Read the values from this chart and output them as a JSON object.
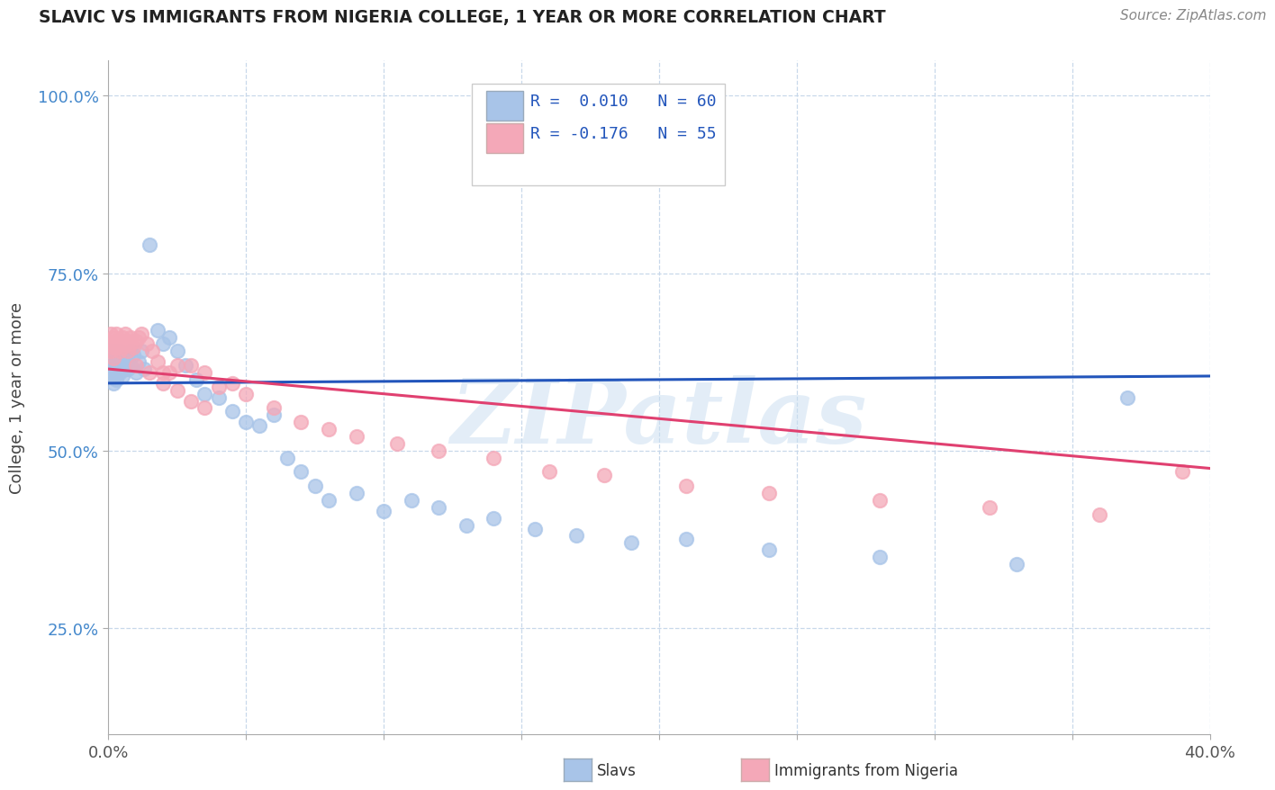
{
  "title": "SLAVIC VS IMMIGRANTS FROM NIGERIA COLLEGE, 1 YEAR OR MORE CORRELATION CHART",
  "source_text": "Source: ZipAtlas.com",
  "ylabel": "College, 1 year or more",
  "xlim": [
    0.0,
    0.4
  ],
  "ylim": [
    0.1,
    1.05
  ],
  "slavs_color": "#a8c4e8",
  "nigeria_color": "#f4a8b8",
  "trendline_slavs_color": "#2255bb",
  "trendline_nigeria_color": "#e04070",
  "background_color": "#ffffff",
  "grid_color": "#c8d8ea",
  "watermark": "ZIPatlas",
  "watermark_color": "#c8ddf0",
  "slavs_x": [
    0.001,
    0.001,
    0.001,
    0.001,
    0.002,
    0.002,
    0.002,
    0.002,
    0.003,
    0.003,
    0.003,
    0.003,
    0.004,
    0.004,
    0.004,
    0.005,
    0.005,
    0.005,
    0.006,
    0.006,
    0.007,
    0.007,
    0.008,
    0.008,
    0.009,
    0.01,
    0.011,
    0.012,
    0.013,
    0.015,
    0.018,
    0.02,
    0.022,
    0.025,
    0.028,
    0.032,
    0.035,
    0.04,
    0.045,
    0.05,
    0.055,
    0.06,
    0.065,
    0.07,
    0.075,
    0.08,
    0.09,
    0.1,
    0.11,
    0.12,
    0.13,
    0.14,
    0.155,
    0.17,
    0.19,
    0.21,
    0.24,
    0.28,
    0.33,
    0.37
  ],
  "slavs_y": [
    0.605,
    0.615,
    0.625,
    0.64,
    0.595,
    0.61,
    0.62,
    0.635,
    0.6,
    0.615,
    0.625,
    0.64,
    0.61,
    0.625,
    0.64,
    0.605,
    0.62,
    0.635,
    0.615,
    0.63,
    0.625,
    0.615,
    0.64,
    0.62,
    0.635,
    0.61,
    0.625,
    0.64,
    0.615,
    0.79,
    0.67,
    0.65,
    0.66,
    0.64,
    0.62,
    0.6,
    0.58,
    0.575,
    0.555,
    0.54,
    0.535,
    0.55,
    0.49,
    0.47,
    0.45,
    0.43,
    0.44,
    0.415,
    0.43,
    0.42,
    0.395,
    0.405,
    0.39,
    0.38,
    0.37,
    0.375,
    0.36,
    0.35,
    0.34,
    0.575
  ],
  "nigeria_x": [
    0.001,
    0.001,
    0.001,
    0.002,
    0.002,
    0.002,
    0.003,
    0.003,
    0.003,
    0.004,
    0.004,
    0.005,
    0.005,
    0.006,
    0.006,
    0.007,
    0.007,
    0.008,
    0.008,
    0.009,
    0.01,
    0.011,
    0.012,
    0.014,
    0.016,
    0.018,
    0.02,
    0.022,
    0.025,
    0.03,
    0.035,
    0.04,
    0.045,
    0.05,
    0.06,
    0.07,
    0.08,
    0.09,
    0.105,
    0.12,
    0.14,
    0.16,
    0.18,
    0.21,
    0.24,
    0.28,
    0.32,
    0.36,
    0.39,
    0.01,
    0.015,
    0.02,
    0.025,
    0.03,
    0.035
  ],
  "nigeria_y": [
    0.64,
    0.65,
    0.665,
    0.63,
    0.645,
    0.66,
    0.645,
    0.655,
    0.665,
    0.64,
    0.655,
    0.645,
    0.66,
    0.65,
    0.665,
    0.64,
    0.655,
    0.65,
    0.66,
    0.645,
    0.655,
    0.66,
    0.665,
    0.65,
    0.64,
    0.625,
    0.61,
    0.61,
    0.62,
    0.62,
    0.61,
    0.59,
    0.595,
    0.58,
    0.56,
    0.54,
    0.53,
    0.52,
    0.51,
    0.5,
    0.49,
    0.47,
    0.465,
    0.45,
    0.44,
    0.43,
    0.42,
    0.41,
    0.47,
    0.62,
    0.61,
    0.595,
    0.585,
    0.57,
    0.56
  ],
  "slavs_trend_x0": 0.0,
  "slavs_trend_y0": 0.595,
  "slavs_trend_x1": 0.4,
  "slavs_trend_y1": 0.605,
  "nigeria_trend_x0": 0.0,
  "nigeria_trend_y0": 0.615,
  "nigeria_trend_x1": 0.4,
  "nigeria_trend_y1": 0.475
}
